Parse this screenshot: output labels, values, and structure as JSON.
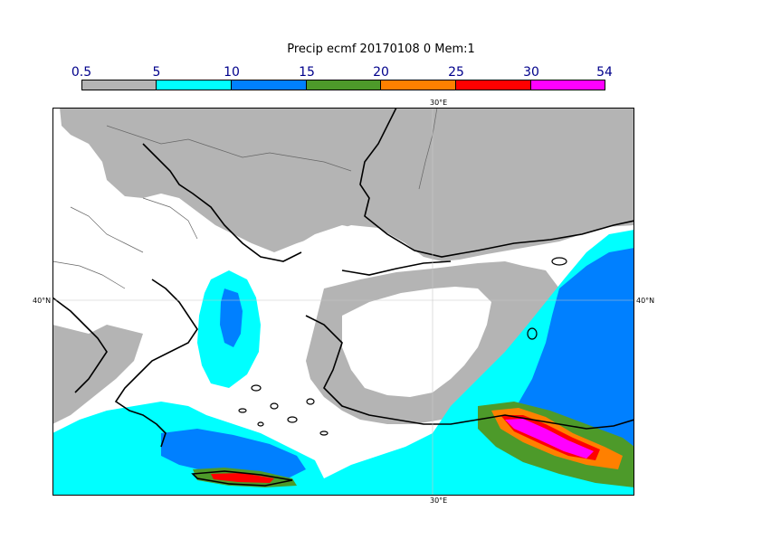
{
  "title": "Precip ecmf 20170108 0 Mem:1",
  "legend": {
    "ticks": [
      "0.5",
      "5",
      "10",
      "15",
      "20",
      "25",
      "30",
      "54"
    ],
    "colors": [
      "#b4b4b4",
      "#00ffff",
      "#0080ff",
      "#4d9a2a",
      "#ff8000",
      "#ff0000",
      "#ff00ff"
    ]
  },
  "axes": {
    "lon_top": "30°E",
    "lon_bottom": "30°E",
    "lat_left": "40°N",
    "lat_right": "40°N"
  },
  "map": {
    "land_color": "#ffffff",
    "frame_color": "#000000",
    "coast_color": "#000000",
    "border_color": "#666666"
  }
}
